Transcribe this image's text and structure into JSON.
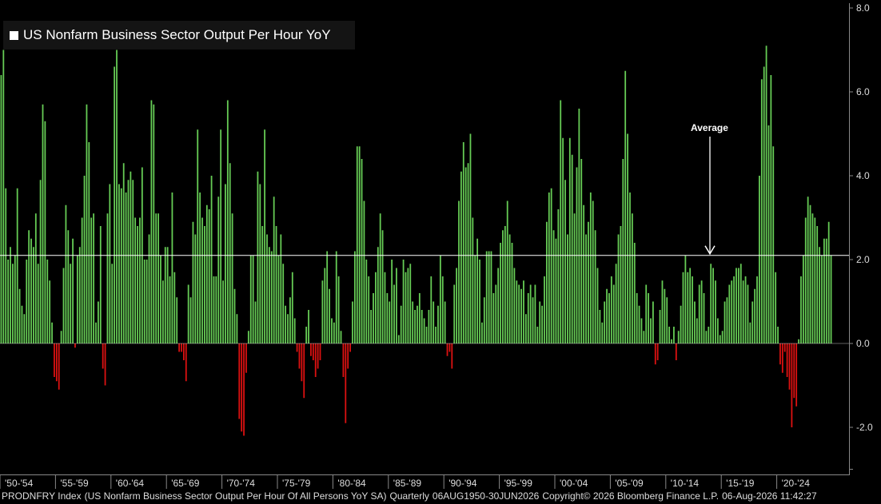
{
  "chart_data": {
    "type": "bar",
    "title": "US Nonfarm Business Sector Output Per Hour YoY",
    "ylim": [
      -3.0,
      8.0
    ],
    "yticks": [
      8.0,
      6.0,
      4.0,
      2.0,
      0.0,
      -2.0
    ],
    "ytick_labels": [
      "8.0",
      "6.0",
      "4.0",
      "2.0",
      "0.0",
      "-2.0"
    ],
    "average": 2.1,
    "annotation": "Average",
    "x_period_labels": [
      "'50-'54",
      "'55-'59",
      "'60-'64",
      "'65-'69",
      "'70-'74",
      "'75-'79",
      "'80-'84",
      "'85-'89",
      "'90-'94",
      "'95-'99",
      "'00-'04",
      "'05-'09",
      "'10-'14",
      "'15-'19",
      "'20-'24"
    ],
    "positive_color": "#66cc55",
    "negative_color": "#dd1111",
    "values": [
      6.4,
      7.0,
      3.7,
      2.0,
      2.3,
      1.9,
      2.1,
      3.7,
      1.3,
      0.9,
      0.7,
      2.0,
      2.7,
      2.5,
      2.3,
      3.1,
      1.9,
      3.9,
      5.7,
      5.3,
      2.0,
      1.5,
      0.5,
      -0.8,
      -0.9,
      -1.1,
      0.3,
      1.8,
      3.3,
      2.7,
      1.9,
      2.5,
      -0.1,
      2.1,
      2.3,
      3.0,
      4.0,
      5.7,
      4.8,
      3.0,
      3.1,
      0.5,
      1.0,
      2.8,
      -0.6,
      -1.0,
      3.1,
      3.8,
      1.9,
      6.6,
      7.0,
      3.8,
      3.7,
      4.3,
      3.6,
      3.9,
      4.1,
      3.9,
      3.0,
      2.8,
      3.0,
      4.2,
      2.0,
      2.0,
      2.6,
      5.8,
      5.7,
      3.1,
      3.1,
      2.1,
      1.5,
      2.3,
      2.3,
      1.6,
      3.6,
      1.7,
      1.1,
      -0.2,
      -0.2,
      -0.4,
      -0.9,
      1.4,
      1.1,
      2.9,
      2.6,
      5.1,
      3.6,
      3.0,
      2.8,
      3.3,
      3.2,
      4.0,
      1.6,
      1.6,
      3.5,
      5.1,
      1.5,
      3.8,
      5.8,
      4.3,
      3.1,
      1.3,
      0.7,
      -1.8,
      -2.1,
      -2.2,
      -0.7,
      0.3,
      2.1,
      2.1,
      1.0,
      4.1,
      3.8,
      2.8,
      5.1,
      2.6,
      2.3,
      2.2,
      3.5,
      2.8,
      2.1,
      2.6,
      1.9,
      0.9,
      0.7,
      1.1,
      1.7,
      0.6,
      -0.2,
      -0.6,
      -0.9,
      -1.3,
      0.4,
      0.8,
      -0.3,
      -0.4,
      -0.8,
      -0.6,
      -0.4,
      1.5,
      1.8,
      2.2,
      1.3,
      0.6,
      0.5,
      2.2,
      1.6,
      0.3,
      -0.8,
      -1.9,
      -0.6,
      -0.2,
      1.0,
      2.2,
      4.7,
      4.7,
      4.4,
      3.4,
      2.0,
      1.6,
      0.8,
      1.2,
      1.7,
      2.3,
      3.1,
      2.7,
      1.7,
      1.2,
      1.0,
      2.0,
      1.4,
      1.8,
      0.2,
      0.9,
      2.0,
      1.7,
      1.8,
      1.9,
      1.0,
      0.8,
      0.9,
      1.2,
      0.8,
      0.6,
      0.4,
      0.8,
      1.6,
      1.0,
      0.4,
      0.9,
      2.1,
      1.6,
      1.0,
      -0.3,
      -0.2,
      -0.6,
      1.4,
      1.8,
      3.4,
      4.1,
      4.8,
      4.2,
      4.3,
      5.0,
      3.0,
      2.1,
      2.5,
      2.0,
      0.5,
      1.1,
      2.2,
      2.2,
      2.2,
      1.2,
      1.4,
      1.8,
      2.4,
      2.7,
      2.8,
      3.4,
      2.6,
      2.4,
      1.8,
      1.5,
      1.4,
      1.3,
      1.5,
      0.7,
      1.2,
      1.4,
      1.1,
      1.4,
      0.4,
      1.0,
      0.9,
      1.6,
      2.9,
      3.6,
      3.7,
      2.7,
      2.5,
      3.2,
      5.8,
      4.9,
      3.9,
      2.6,
      4.9,
      4.5,
      3.1,
      4.2,
      5.6,
      4.4,
      3.3,
      2.6,
      2.9,
      3.6,
      3.4,
      2.7,
      1.8,
      0.8,
      0.5,
      1.0,
      1.3,
      1.2,
      1.6,
      1.4,
      1.9,
      2.6,
      2.8,
      4.4,
      6.5,
      5.0,
      3.6,
      3.1,
      2.4,
      1.2,
      0.9,
      0.6,
      0.3,
      1.4,
      1.2,
      0.6,
      1.0,
      -0.5,
      -0.4,
      0.8,
      1.5,
      1.3,
      1.1,
      0.4,
      0.1,
      0.4,
      -0.4,
      0.3,
      0.9,
      1.7,
      2.1,
      1.7,
      1.8,
      1.6,
      1.0,
      0.6,
      1.4,
      1.5,
      1.2,
      0.3,
      0.4,
      1.9,
      1.8,
      1.5,
      0.6,
      0.2,
      0.3,
      1.0,
      1.1,
      1.4,
      1.5,
      1.6,
      1.8,
      1.8,
      1.9,
      1.5,
      1.6,
      1.4,
      0.5,
      1.0,
      1.3,
      1.6,
      4.0,
      6.3,
      6.6,
      7.1,
      5.2,
      6.4,
      4.7,
      1.7,
      0.4,
      -0.5,
      -0.7,
      -0.2,
      -0.8,
      -1.1,
      -2.0,
      -1.3,
      -1.5,
      0.1,
      1.6,
      2.1,
      3.0,
      3.5,
      3.3,
      3.1,
      3.0,
      2.8,
      2.3,
      2.1,
      2.5,
      2.5,
      2.9,
      2.1
    ]
  },
  "footer": {
    "ticker": "PRODNFRY Index",
    "description": "(US Nonfarm Business Sector Output Per Hour Of All Persons YoY SA)",
    "frequency": "Quarterly",
    "date_range": "06AUG1950-30JUN2026",
    "copyright": "Copyright© 2026 Bloomberg Finance L.P.",
    "timestamp": "06-Aug-2026 11:42:27"
  }
}
